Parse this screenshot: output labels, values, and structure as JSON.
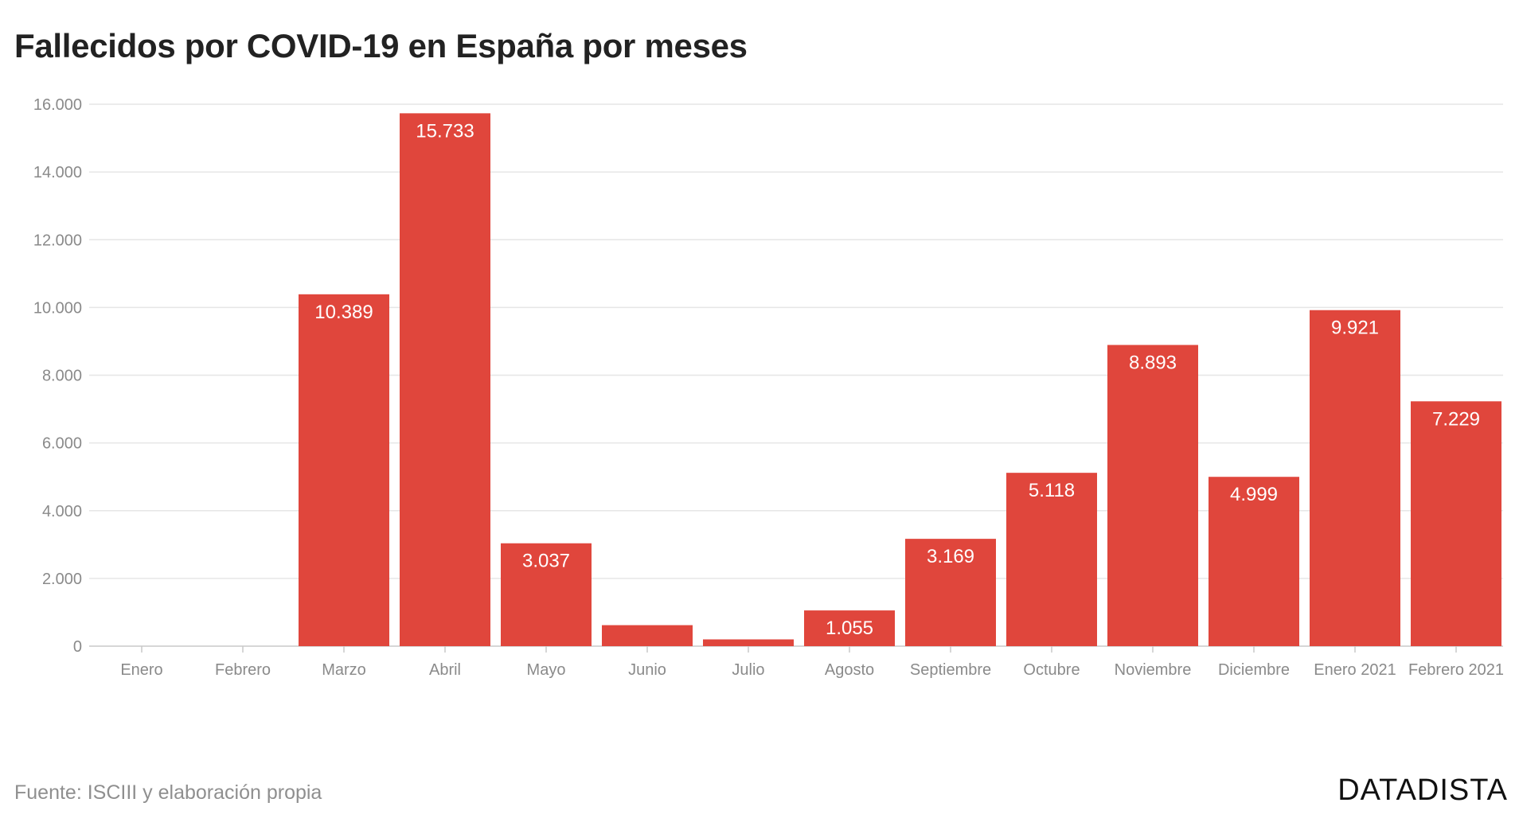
{
  "chart_data": {
    "type": "bar",
    "title": "Fallecidos por COVID-19 en España por meses",
    "xlabel": "",
    "ylabel": "",
    "categories": [
      "Enero",
      "Febrero",
      "Marzo",
      "Abril",
      "Mayo",
      "Junio",
      "Julio",
      "Agosto",
      "Septiembre",
      "Octubre",
      "Noviembre",
      "Diciembre",
      "Enero 2021",
      "Febrero 2021"
    ],
    "values": [
      0,
      0,
      10389,
      15733,
      3037,
      620,
      200,
      1055,
      3169,
      5118,
      8893,
      4999,
      9921,
      7229
    ],
    "data_labels": [
      "",
      "",
      "10.389",
      "15.733",
      "3.037",
      "",
      "",
      "1.055",
      "3.169",
      "5.118",
      "8.893",
      "4.999",
      "9.921",
      "7.229"
    ],
    "yticks": [
      0,
      2000,
      4000,
      6000,
      8000,
      10000,
      12000,
      14000,
      16000
    ],
    "ytick_labels": [
      "0",
      "2.000",
      "4.000",
      "6.000",
      "8.000",
      "10.000",
      "12.000",
      "14.000",
      "16.000"
    ],
    "ylim": [
      0,
      16000
    ],
    "grid": true,
    "legend": "none",
    "bar_color": "#e0463c"
  },
  "source": "Fuente: ISCIII y elaboración propia",
  "brand": "DATADISTA"
}
